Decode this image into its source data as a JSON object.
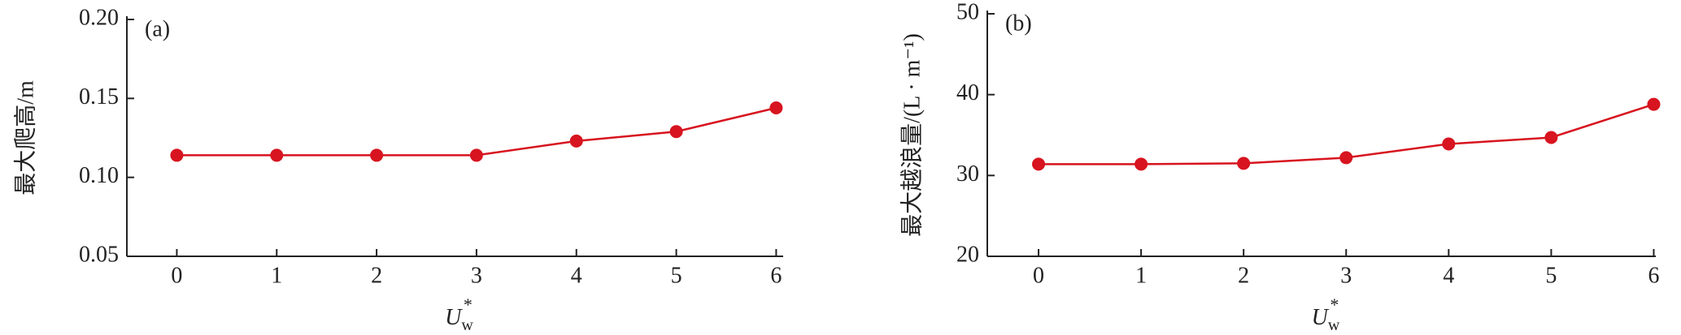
{
  "chart_data": [
    {
      "type": "line",
      "label": "(a)",
      "ylabel": "最大爬高/m",
      "xlabel": "U",
      "xlabel_sub": "w",
      "xlabel_sup": "*",
      "x": [
        0,
        1,
        2,
        3,
        4,
        5,
        6
      ],
      "series": [
        {
          "color": "#d7141f",
          "values": [
            0.114,
            0.114,
            0.114,
            0.114,
            0.123,
            0.129,
            0.144
          ]
        }
      ],
      "xlim": [
        -0.5,
        6.07
      ],
      "xticks": [
        0,
        1,
        2,
        3,
        4,
        5,
        6
      ],
      "ylim": [
        0.05,
        0.2
      ],
      "yticks": [
        {
          "value": 0.05,
          "label": "0.05"
        },
        {
          "value": 0.1,
          "label": "0.10"
        },
        {
          "value": 0.15,
          "label": "0.15"
        },
        {
          "value": 0.2,
          "label": "0.20"
        }
      ]
    },
    {
      "type": "line",
      "label": "(b)",
      "ylabel": "最大越浪量/(L · m⁻¹)",
      "xlabel": "U",
      "xlabel_sub": "w",
      "xlabel_sup": "*",
      "x": [
        0,
        1,
        2,
        3,
        4,
        5,
        6
      ],
      "series": [
        {
          "color": "#d7141f",
          "values": [
            31.4,
            31.4,
            31.5,
            32.2,
            33.9,
            34.7,
            38.8
          ]
        }
      ],
      "xlim": [
        -0.5,
        6.02
      ],
      "xticks": [
        0,
        1,
        2,
        3,
        4,
        5,
        6
      ],
      "ylim": [
        20,
        50
      ],
      "yticks": [
        20,
        30,
        40,
        50
      ]
    }
  ]
}
